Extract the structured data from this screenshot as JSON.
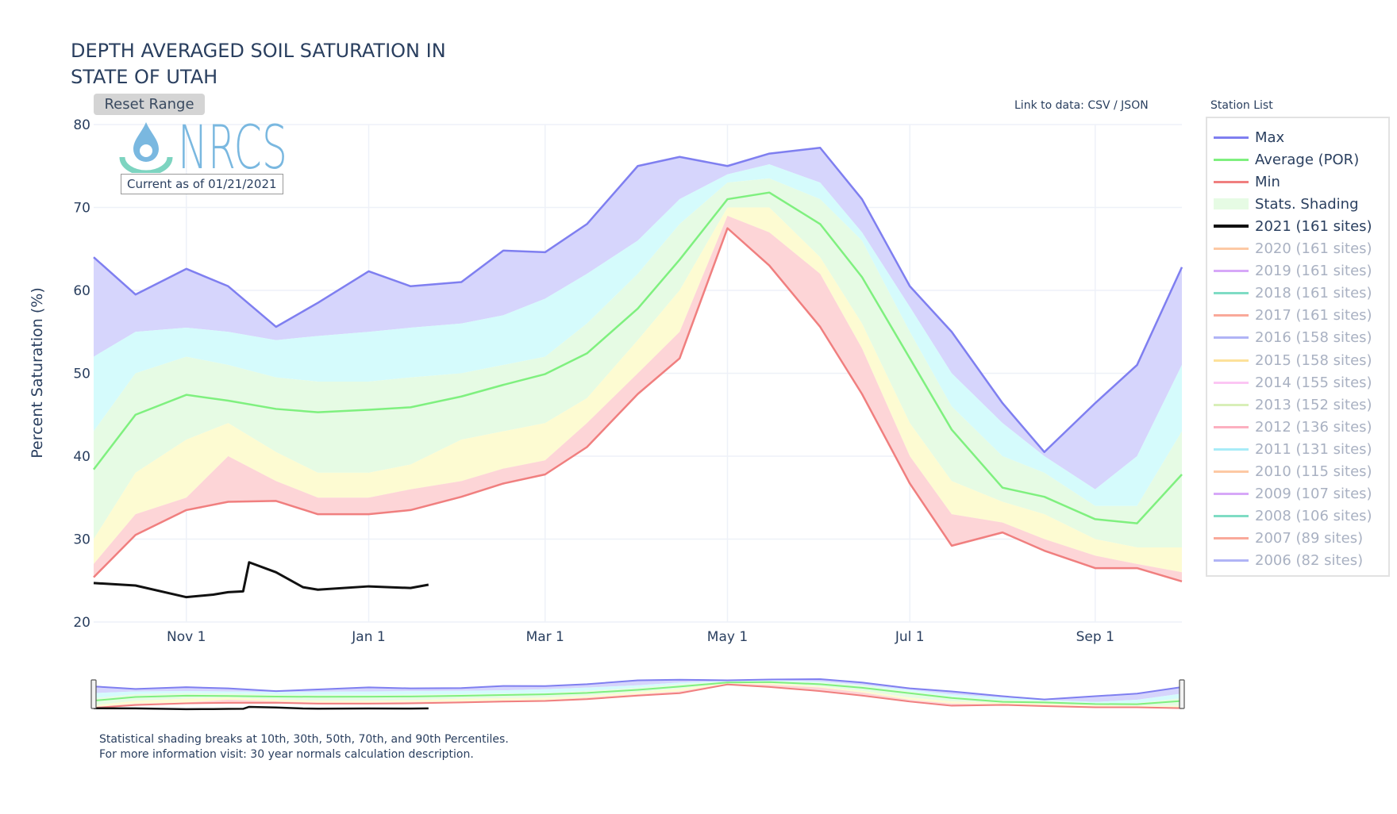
{
  "title_lines": [
    "DEPTH AVERAGED SOIL SATURATION IN",
    "STATE OF UTAH"
  ],
  "reset_range_label": "Reset Range",
  "logo_text": "NRCS",
  "current_as_of": "Current as of 01/21/2021",
  "link_to_data": "Link to data: CSV / JSON",
  "legend_title": "Station List",
  "footnotes": [
    "Statistical shading breaks at 10th, 30th, 50th, 70th, and 90th Percentiles.",
    "For more information visit: 30 year normals calculation description."
  ],
  "colors": {
    "max": "#7f7ff0",
    "average": "#7ff07f",
    "min": "#f07f7f",
    "current_year": "#111111",
    "band_max_p90": "#d6d5fc",
    "band_p90_p70": "#d5fbfc",
    "band_p70_p30": "#e6fbe4",
    "band_p30_p10": "#fdfbd2",
    "band_p10_min": "#fdd5d7"
  },
  "legend": [
    {
      "label": "Max",
      "color": "#7f7ff0",
      "active": true
    },
    {
      "label": "Average (POR)",
      "color": "#7ff07f",
      "active": true
    },
    {
      "label": "Min",
      "color": "#f07f7f",
      "active": true
    },
    {
      "label": "Stats. Shading",
      "color": "#e6fbe4",
      "active": true,
      "swatch": "band"
    },
    {
      "label": "2021 (161 sites)",
      "color": "#111111",
      "active": true
    },
    {
      "label": "2020 (161 sites)",
      "color": "#fdc9a4",
      "active": false
    },
    {
      "label": "2019 (161 sites)",
      "color": "#d7a8f8",
      "active": false
    },
    {
      "label": "2018 (161 sites)",
      "color": "#7fdcc4",
      "active": false
    },
    {
      "label": "2017 (161 sites)",
      "color": "#f9a99a",
      "active": false
    },
    {
      "label": "2016 (158 sites)",
      "color": "#b0b4f6",
      "active": false
    },
    {
      "label": "2015 (158 sites)",
      "color": "#fde19a",
      "active": false
    },
    {
      "label": "2014 (155 sites)",
      "color": "#fcc6f4",
      "active": false
    },
    {
      "label": "2013 (152 sites)",
      "color": "#d8efb8",
      "active": false
    },
    {
      "label": "2012 (136 sites)",
      "color": "#fcb0c0",
      "active": false
    },
    {
      "label": "2011 (131 sites)",
      "color": "#a8ecf8",
      "active": false
    },
    {
      "label": "2010 (115 sites)",
      "color": "#fdc9a4",
      "active": false
    },
    {
      "label": "2009 (107 sites)",
      "color": "#d7a8f8",
      "active": false
    },
    {
      "label": "2008 (106 sites)",
      "color": "#7fdcc4",
      "active": false
    },
    {
      "label": "2007 (89 sites)",
      "color": "#f9a99a",
      "active": false
    },
    {
      "label": "2006 (82 sites)",
      "color": "#b0b4f6",
      "active": false
    }
  ],
  "chart_data": {
    "type": "area",
    "title": "DEPTH AVERAGED SOIL SATURATION IN STATE OF UTAH",
    "xlabel": "",
    "ylabel": "Percent Saturation (%)",
    "ylim": [
      20,
      80
    ],
    "yticks": [
      20,
      30,
      40,
      50,
      60,
      70,
      80
    ],
    "xlim": [
      "2020-10-01",
      "2021-09-30"
    ],
    "xticks": [
      {
        "date": "2020-11-01",
        "label": "Nov 1"
      },
      {
        "date": "2021-01-01",
        "label": "Jan 1"
      },
      {
        "date": "2021-03-01",
        "label": "Mar 1"
      },
      {
        "date": "2021-05-01",
        "label": "May 1"
      },
      {
        "date": "2021-07-01",
        "label": "Jul 1"
      },
      {
        "date": "2021-09-01",
        "label": "Sep 1"
      }
    ],
    "grid": true,
    "legend_position": "right",
    "range_slider": true,
    "dates": [
      "2020-10-01",
      "2020-10-15",
      "2020-11-01",
      "2020-11-15",
      "2020-12-01",
      "2020-12-15",
      "2021-01-01",
      "2021-01-15",
      "2021-02-01",
      "2021-02-15",
      "2021-03-01",
      "2021-03-15",
      "2021-04-01",
      "2021-04-15",
      "2021-05-01",
      "2021-05-15",
      "2021-06-01",
      "2021-06-15",
      "2021-07-01",
      "2021-07-15",
      "2021-08-01",
      "2021-08-15",
      "2021-09-01",
      "2021-09-15",
      "2021-09-30"
    ],
    "series": [
      {
        "name": "Max",
        "values": [
          64,
          59.5,
          62.6,
          60.5,
          55.6,
          58.5,
          62.3,
          60.5,
          61,
          64.8,
          64.6,
          68,
          75,
          76.1,
          75,
          76.5,
          77.2,
          71,
          60.5,
          55,
          46.4,
          40.5,
          46.4,
          51,
          62.8
        ]
      },
      {
        "name": "Average (POR)",
        "values": [
          38.4,
          45,
          47.4,
          46.7,
          45.7,
          45.3,
          45.6,
          45.9,
          47.2,
          48.6,
          49.9,
          52.4,
          57.8,
          63.7,
          71,
          71.8,
          68,
          61.6,
          51.8,
          43.2,
          36.2,
          35.1,
          32.4,
          31.9,
          37.8
        ]
      },
      {
        "name": "Min",
        "values": [
          25.4,
          30.5,
          33.5,
          34.5,
          34.6,
          33,
          33,
          33.5,
          35.1,
          36.7,
          37.8,
          41.1,
          47.5,
          51.8,
          67.5,
          63,
          55.6,
          47.5,
          36.7,
          29.2,
          30.8,
          28.6,
          26.5,
          26.5,
          24.9
        ]
      }
    ],
    "percentiles": {
      "p10": [
        27,
        33,
        35,
        40,
        37,
        35,
        35,
        36,
        37,
        38.5,
        39.5,
        44,
        50,
        55,
        69,
        67,
        62,
        53,
        40,
        33,
        32,
        30,
        28,
        27,
        26
      ],
      "p30": [
        30,
        38,
        42,
        44,
        40.5,
        38,
        38,
        39,
        42,
        43,
        44,
        47,
        54,
        60,
        70,
        70,
        64,
        56,
        44,
        37,
        34.5,
        33,
        30,
        29,
        29
      ],
      "p70": [
        43,
        50,
        52,
        51,
        49.5,
        49,
        49,
        49.5,
        50,
        51,
        52,
        56,
        62,
        68,
        73,
        73.5,
        71,
        66,
        55,
        46,
        40,
        38,
        34,
        34,
        43
      ],
      "p90": [
        52,
        55,
        55.5,
        55,
        54,
        54.5,
        55,
        55.5,
        56,
        57,
        59,
        62,
        66,
        71,
        74,
        75.2,
        73,
        67,
        58,
        50,
        44,
        40,
        36,
        40,
        51
      ]
    },
    "current_year": {
      "name": "2021 (161 sites)",
      "dates": [
        "2020-10-01",
        "2020-10-15",
        "2020-11-01",
        "2020-11-10",
        "2020-11-15",
        "2020-11-20",
        "2020-11-22",
        "2020-12-01",
        "2020-12-10",
        "2020-12-15",
        "2021-01-01",
        "2021-01-15",
        "2021-01-21"
      ],
      "values": [
        24.7,
        24.4,
        23,
        23.3,
        23.6,
        23.7,
        27.2,
        26,
        24.2,
        23.9,
        24.3,
        24.1,
        24.5
      ]
    }
  }
}
